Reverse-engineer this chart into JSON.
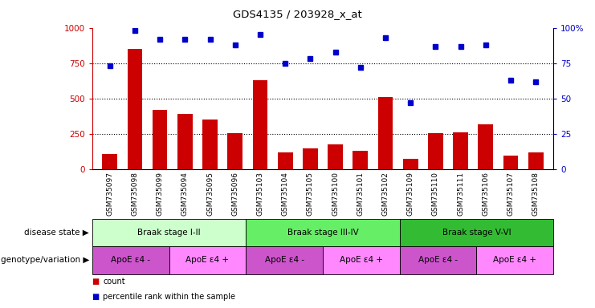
{
  "title": "GDS4135 / 203928_x_at",
  "samples": [
    "GSM735097",
    "GSM735098",
    "GSM735099",
    "GSM735094",
    "GSM735095",
    "GSM735096",
    "GSM735103",
    "GSM735104",
    "GSM735105",
    "GSM735100",
    "GSM735101",
    "GSM735102",
    "GSM735109",
    "GSM735110",
    "GSM735111",
    "GSM735106",
    "GSM735107",
    "GSM735108"
  ],
  "counts": [
    110,
    850,
    420,
    390,
    350,
    255,
    630,
    120,
    150,
    175,
    130,
    510,
    75,
    255,
    260,
    320,
    100,
    120
  ],
  "percentiles": [
    73,
    98,
    92,
    92,
    92,
    88,
    95,
    75,
    78,
    83,
    72,
    93,
    47,
    87,
    87,
    88,
    63,
    62
  ],
  "ylim_left": [
    0,
    1000
  ],
  "ylim_right": [
    0,
    100
  ],
  "yticks_left": [
    0,
    250,
    500,
    750,
    1000
  ],
  "yticks_right": [
    0,
    25,
    50,
    75,
    100
  ],
  "bar_color": "#cc0000",
  "dot_color": "#0000cc",
  "disease_state_groups": [
    {
      "label": "Braak stage I-II",
      "start": 0,
      "end": 6,
      "color": "#ccffcc"
    },
    {
      "label": "Braak stage III-IV",
      "start": 6,
      "end": 12,
      "color": "#66ee66"
    },
    {
      "label": "Braak stage V-VI",
      "start": 12,
      "end": 18,
      "color": "#33bb33"
    }
  ],
  "genotype_groups": [
    {
      "label": "ApoE ε4 -",
      "start": 0,
      "end": 3,
      "color": "#cc55cc"
    },
    {
      "label": "ApoE ε4 +",
      "start": 3,
      "end": 6,
      "color": "#ff88ff"
    },
    {
      "label": "ApoE ε4 -",
      "start": 6,
      "end": 9,
      "color": "#cc55cc"
    },
    {
      "label": "ApoE ε4 +",
      "start": 9,
      "end": 12,
      "color": "#ff88ff"
    },
    {
      "label": "ApoE ε4 -",
      "start": 12,
      "end": 15,
      "color": "#cc55cc"
    },
    {
      "label": "ApoE ε4 +",
      "start": 15,
      "end": 18,
      "color": "#ff88ff"
    }
  ],
  "left_label_color": "#cc0000",
  "right_label_color": "#0000cc",
  "disease_state_label": "disease state",
  "genotype_label": "genotype/variation",
  "legend_count": "count",
  "legend_percentile": "percentile rank within the sample"
}
